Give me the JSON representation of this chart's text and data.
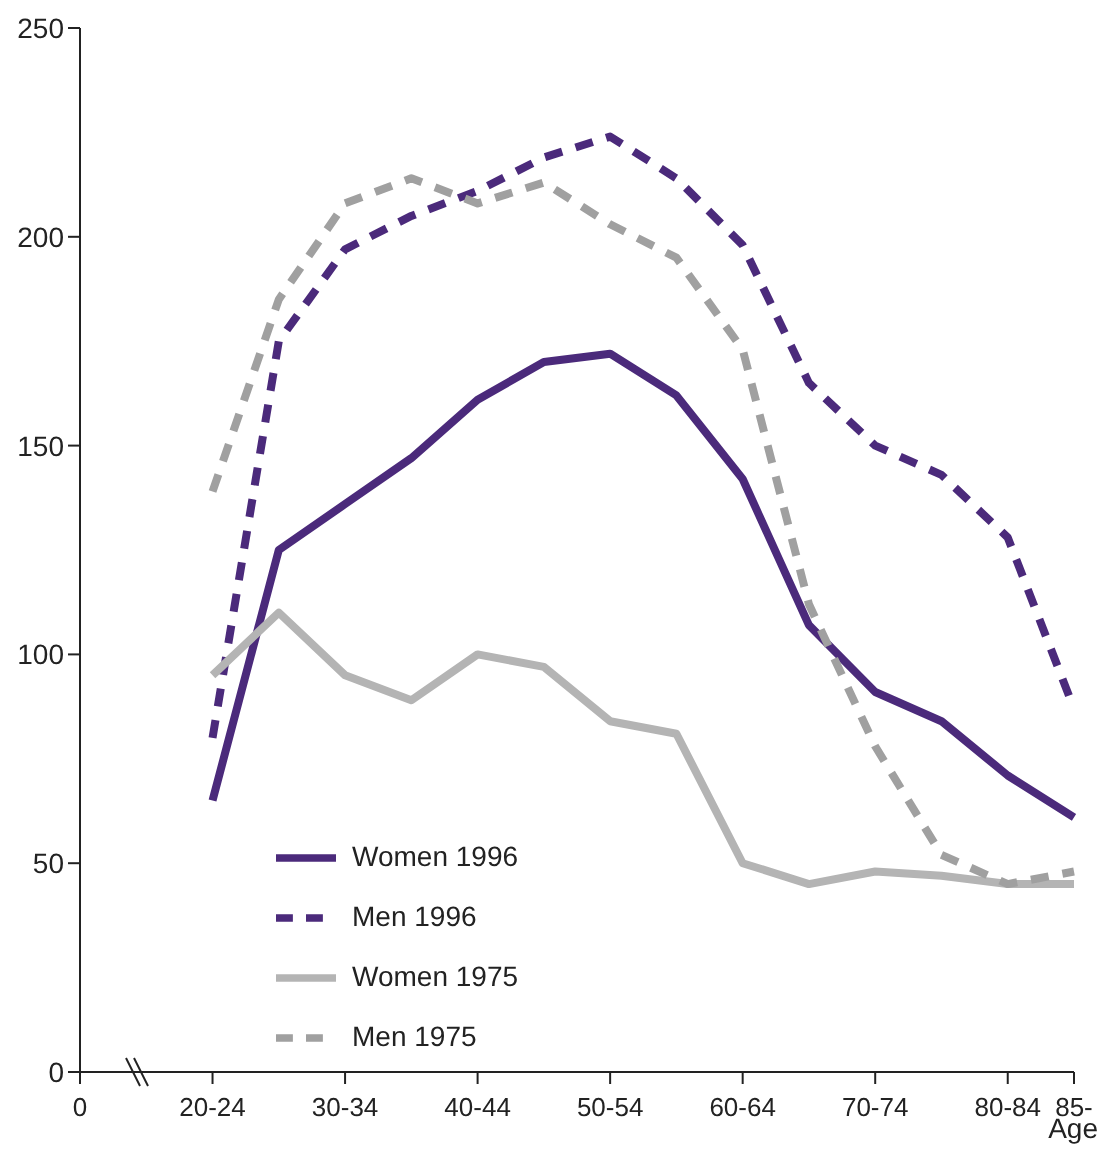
{
  "chart_data": {
    "type": "line",
    "xlabel": "Age",
    "categories": [
      "0",
      null,
      "20-24",
      null,
      "30-34",
      null,
      "40-44",
      null,
      "50-54",
      null,
      "60-64",
      null,
      "70-74",
      null,
      "80-84",
      "85-"
    ],
    "series": [
      {
        "name": "Women 1996",
        "color": "#4b2a7b",
        "line_style": "solid",
        "values": [
          null,
          null,
          65,
          125,
          136,
          147,
          161,
          170,
          172,
          162,
          142,
          107,
          91,
          84,
          71,
          61
        ]
      },
      {
        "name": "Men 1996",
        "color": "#4b2a7b",
        "line_style": "dashed",
        "values": [
          null,
          null,
          80,
          175,
          197,
          205,
          211,
          219,
          224,
          214,
          198,
          165,
          150,
          143,
          128,
          87
        ]
      },
      {
        "name": "Women 1975",
        "color": "#b4b4b4",
        "line_style": "solid",
        "values": [
          null,
          null,
          95,
          110,
          95,
          89,
          100,
          97,
          84,
          81,
          50,
          45,
          48,
          47,
          45,
          45
        ]
      },
      {
        "name": "Men 1975",
        "color": "#a0a0a0",
        "line_style": "dashed",
        "values": [
          null,
          null,
          139,
          185,
          208,
          214,
          208,
          213,
          203,
          195,
          173,
          112,
          78,
          52,
          45,
          48
        ]
      }
    ],
    "ylim": [
      0,
      250
    ],
    "yticks": [
      0,
      50,
      100,
      150,
      200,
      250
    ],
    "grid": false,
    "legend": "bottom left",
    "marker": "none"
  }
}
